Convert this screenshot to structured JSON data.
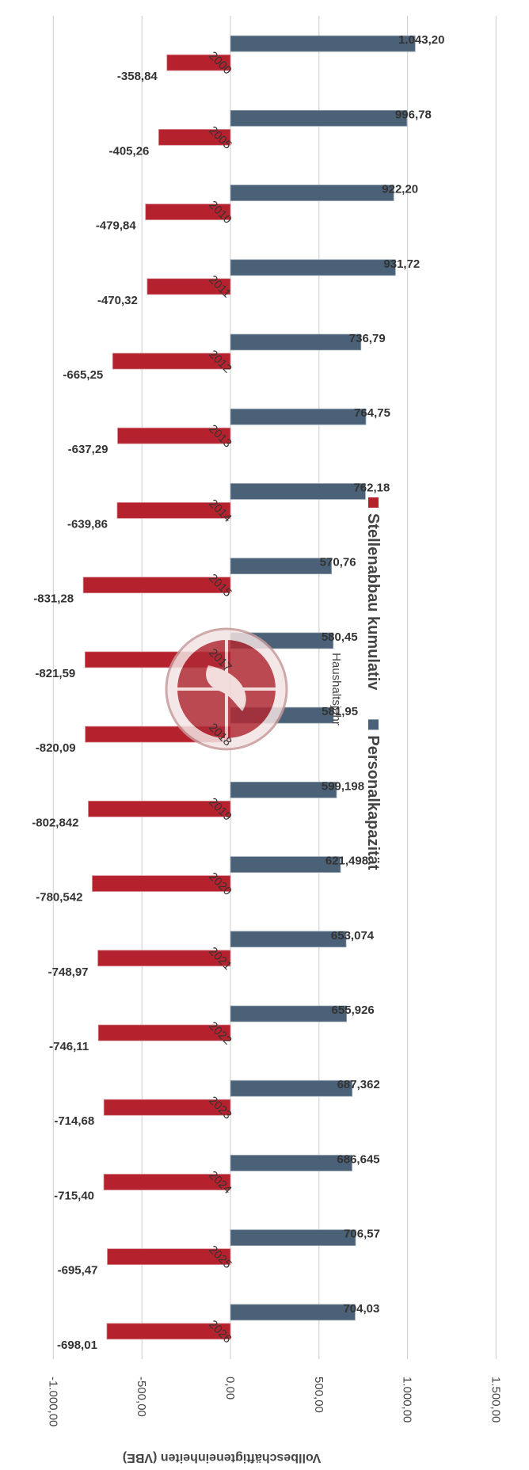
{
  "chart_data": {
    "type": "bar",
    "orientation": "horizontal",
    "categories": [
      "2000",
      "2005",
      "2010",
      "2011",
      "2012",
      "2013",
      "2014",
      "2015",
      "2017",
      "2018",
      "2019",
      "2020",
      "2021",
      "2022",
      "2023",
      "2024",
      "2025",
      "2026"
    ],
    "series": [
      {
        "name": "Personalkapazität",
        "color": "#4a6177",
        "values": [
          1043.2,
          996.78,
          922.2,
          931.72,
          736.79,
          764.75,
          762.18,
          570.76,
          580.45,
          581.95,
          599.198,
          621.498,
          653.074,
          655.926,
          687.362,
          686.645,
          706.57,
          704.03
        ],
        "labels": [
          "1.043,20",
          "996,78",
          "922,20",
          "931,72",
          "736,79",
          "764,75",
          "762,18",
          "570,76",
          "580,45",
          "581,95",
          "599,198",
          "621,498",
          "653,074",
          "655,926",
          "687,362",
          "686,645",
          "706,57",
          "704,03"
        ]
      },
      {
        "name": "Stellenabbau kumulativ",
        "color": "#b5222d",
        "values": [
          -358.84,
          -405.26,
          -479.84,
          -470.32,
          -665.25,
          -637.29,
          -639.86,
          -831.28,
          -821.59,
          -820.09,
          -802.842,
          -780.542,
          -748.97,
          -746.11,
          -714.68,
          -715.4,
          -695.47,
          -698.01
        ],
        "labels": [
          "-358,84",
          "-405,26",
          "-479,84",
          "-470,32",
          "-665,25",
          "-637,29",
          "-639,86",
          "-831,28",
          "-821,59",
          "-820,09",
          "-802,842",
          "-780,542",
          "-748,97",
          "-746,11",
          "-714,68",
          "-715,40",
          "-695,47",
          "-698,01"
        ]
      }
    ],
    "value_axis": {
      "label": "Vollbeschäftigteneinheiten (VBE)",
      "range": [
        -1000,
        1500
      ],
      "ticks": [
        1500,
        1000,
        500,
        0,
        -500,
        -1000
      ],
      "tick_labels": [
        "1.500,00",
        "1.000,00",
        "500,00",
        "0,00",
        "-500,00",
        "-1.000,00"
      ]
    },
    "category_axis": {
      "label": "Haushaltsjahr"
    },
    "grid": true,
    "legend": {
      "placement": "bottom",
      "items": [
        "Stellenabbau kumulativ",
        "Personalkapazität"
      ]
    }
  }
}
